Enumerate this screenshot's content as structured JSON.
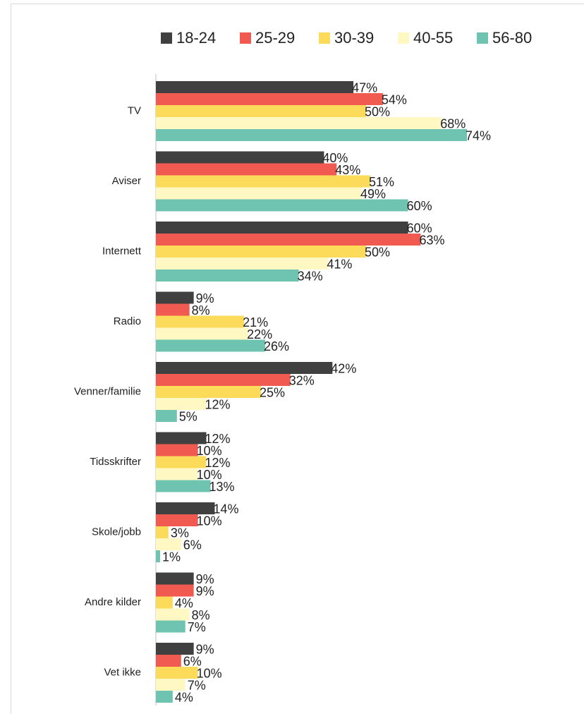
{
  "chart_data": {
    "type": "bar",
    "orientation": "horizontal",
    "categories": [
      "TV",
      "Aviser",
      "Internett",
      "Radio",
      "Venner/familie",
      "Tidsskrifter",
      "Skole/jobb",
      "Andre kilder",
      "Vet ikke"
    ],
    "series": [
      {
        "name": "18-24",
        "color": "#404040",
        "values": [
          47,
          40,
          60,
          9,
          42,
          12,
          14,
          9,
          9
        ],
        "value_labels": [
          "47%",
          "40%",
          "60%",
          "9%",
          "42%",
          "12%",
          "14%",
          "9%",
          "9%"
        ]
      },
      {
        "name": "25-29",
        "color": "#f05a50",
        "values": [
          54,
          43,
          63,
          8,
          32,
          10,
          10,
          9,
          6
        ],
        "value_labels": [
          "54%",
          "43%",
          "63%",
          "8%",
          "32%",
          "10%",
          "10%",
          "9%",
          "6%"
        ]
      },
      {
        "name": "30-39",
        "color": "#fddb5a",
        "values": [
          50,
          51,
          50,
          21,
          25,
          12,
          3,
          4,
          10
        ],
        "value_labels": [
          "50%",
          "51%",
          "50%",
          "21%",
          "25%",
          "12%",
          "3%",
          "4%",
          "10%"
        ]
      },
      {
        "name": "40-55",
        "color": "#fff8c2",
        "values": [
          68,
          49,
          41,
          22,
          12,
          10,
          6,
          8,
          7
        ],
        "value_labels": [
          "68%",
          "49%",
          "41%",
          "22%",
          "12%",
          "10%",
          "6%",
          "8%",
          "7%"
        ]
      },
      {
        "name": "56-80",
        "color": "#6ec4b1",
        "values": [
          74,
          60,
          34,
          26,
          5,
          13,
          1,
          7,
          4
        ],
        "value_labels": [
          "74%",
          "60%",
          "34%",
          "26%",
          "5%",
          "13%",
          "1%",
          "7%",
          "4%"
        ]
      }
    ],
    "legend": "top"
  }
}
